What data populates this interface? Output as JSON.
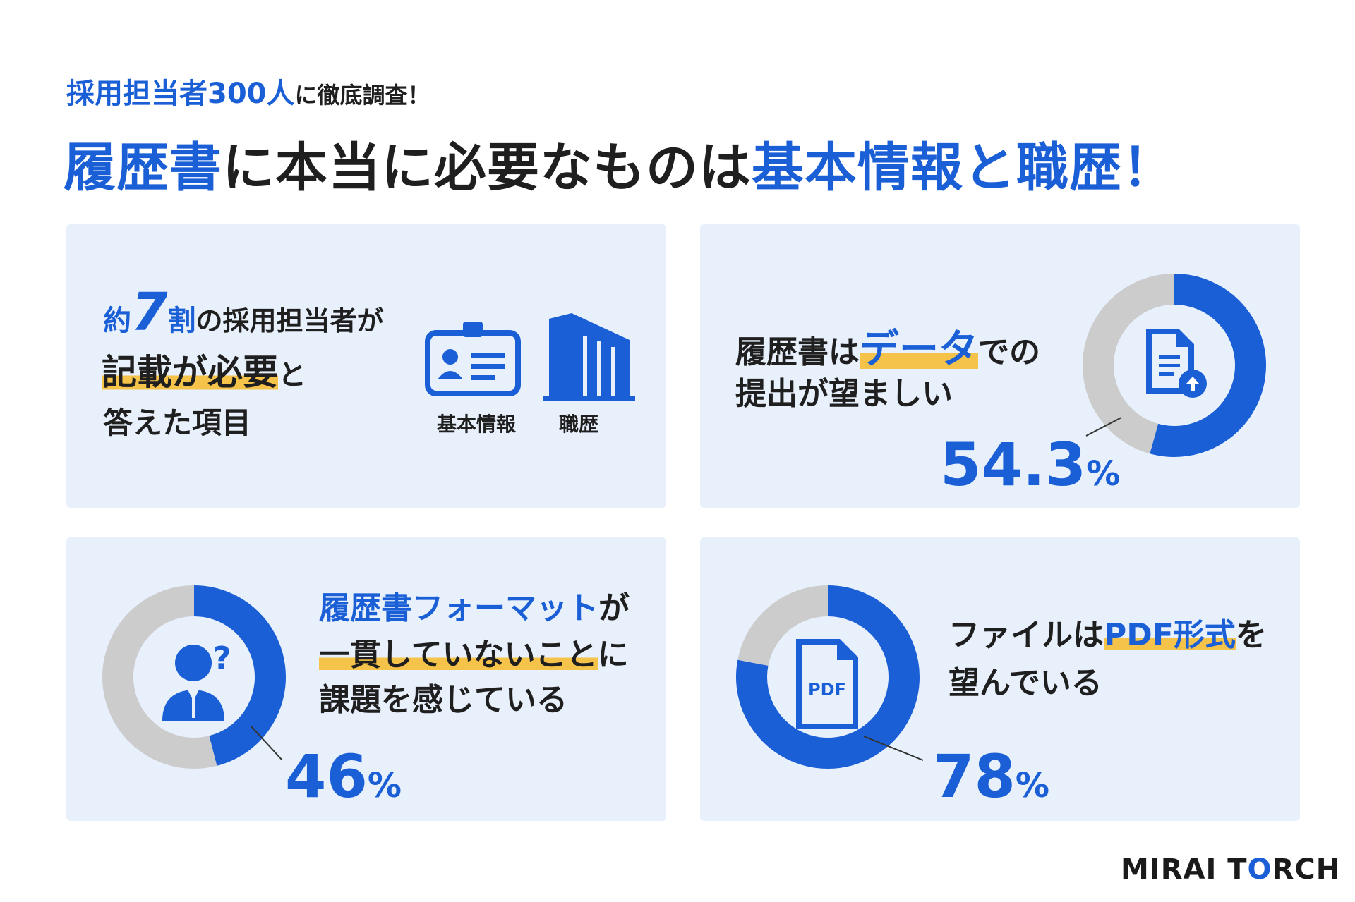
{
  "header": {
    "subtitle_highlight": "採用担当者300人",
    "subtitle_rest": "に徹底調査！",
    "title_part1": "履歴書",
    "title_part2": "に本当に必要なものは",
    "title_part3": "基本情報と職歴",
    "title_part4": "！"
  },
  "card1": {
    "approx": "約",
    "seven": "7",
    "wari": "割",
    "line1_rest": "の採用担当者が",
    "line2_highlight": "記載が必要",
    "line2_rest": "と",
    "line3": "答えた項目",
    "icon1_name": "id-card-icon",
    "icon1_label": "基本情報",
    "icon2_name": "building-icon",
    "icon2_label": "職歴"
  },
  "card2": {
    "line1_a": "履歴書は",
    "line1_highlight": "データ",
    "line1_b": "での",
    "line2": "提出が望ましい",
    "percent": "54.3",
    "unit": "%",
    "icon_name": "document-upload-icon"
  },
  "card3": {
    "line1_a": "履歴書フォーマット",
    "line1_b": "が",
    "line2_highlight": "一貫していないこと",
    "line2_b": "に",
    "line3": "課題を感じている",
    "percent": "46",
    "unit": "%",
    "icon_name": "confused-person-icon"
  },
  "card4": {
    "line1_a": "ファイルは",
    "line1_highlight": "PDF形式",
    "line1_b": "を",
    "line2": "望んでいる",
    "percent": "78",
    "unit": "%",
    "icon_name": "pdf-file-icon",
    "pdf_label": "PDF"
  },
  "logo": {
    "part1": "MIRAI T",
    "part2": "O",
    "part3": "RCH"
  },
  "colors": {
    "accent": "#1a5fd6",
    "highlight": "#f5c24a",
    "card_bg": "#e8f0fc",
    "donut_rest": "#cccccc"
  },
  "chart_data": [
    {
      "type": "pie",
      "title": "履歴書はデータでの提出が望ましい",
      "values": [
        54.3,
        45.7
      ],
      "colors": [
        "#1a5fd6",
        "#cccccc"
      ]
    },
    {
      "type": "pie",
      "title": "履歴書フォーマットが一貫していないことに課題を感じている",
      "values": [
        46,
        54
      ],
      "colors": [
        "#1a5fd6",
        "#cccccc"
      ]
    },
    {
      "type": "pie",
      "title": "ファイルはPDF形式を望んでいる",
      "values": [
        78,
        22
      ],
      "colors": [
        "#1a5fd6",
        "#cccccc"
      ]
    }
  ]
}
